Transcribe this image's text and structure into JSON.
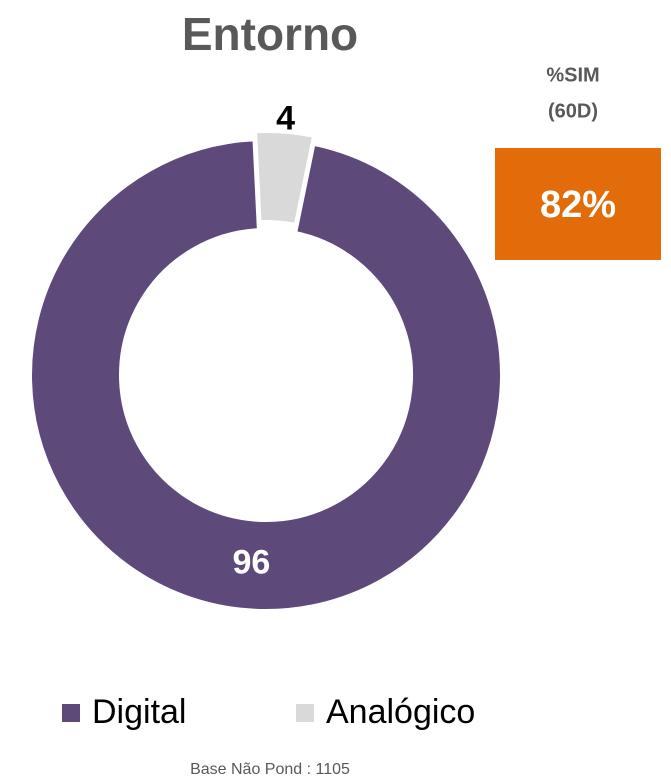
{
  "chart_data": {
    "type": "donut",
    "title": "Entorno",
    "categories": [
      "Digital",
      "Analógico"
    ],
    "series": [
      {
        "name": "Entorno",
        "values": [
          96,
          4
        ],
        "colors": [
          "#5e4a7a",
          "#d9d9d9"
        ]
      }
    ],
    "legend": "bottom",
    "kpi": {
      "label_lines": [
        "%SIM",
        "(60D)"
      ],
      "value": "82%",
      "color": "#e36c0a"
    },
    "note": "Base Não Pond : 1105"
  }
}
